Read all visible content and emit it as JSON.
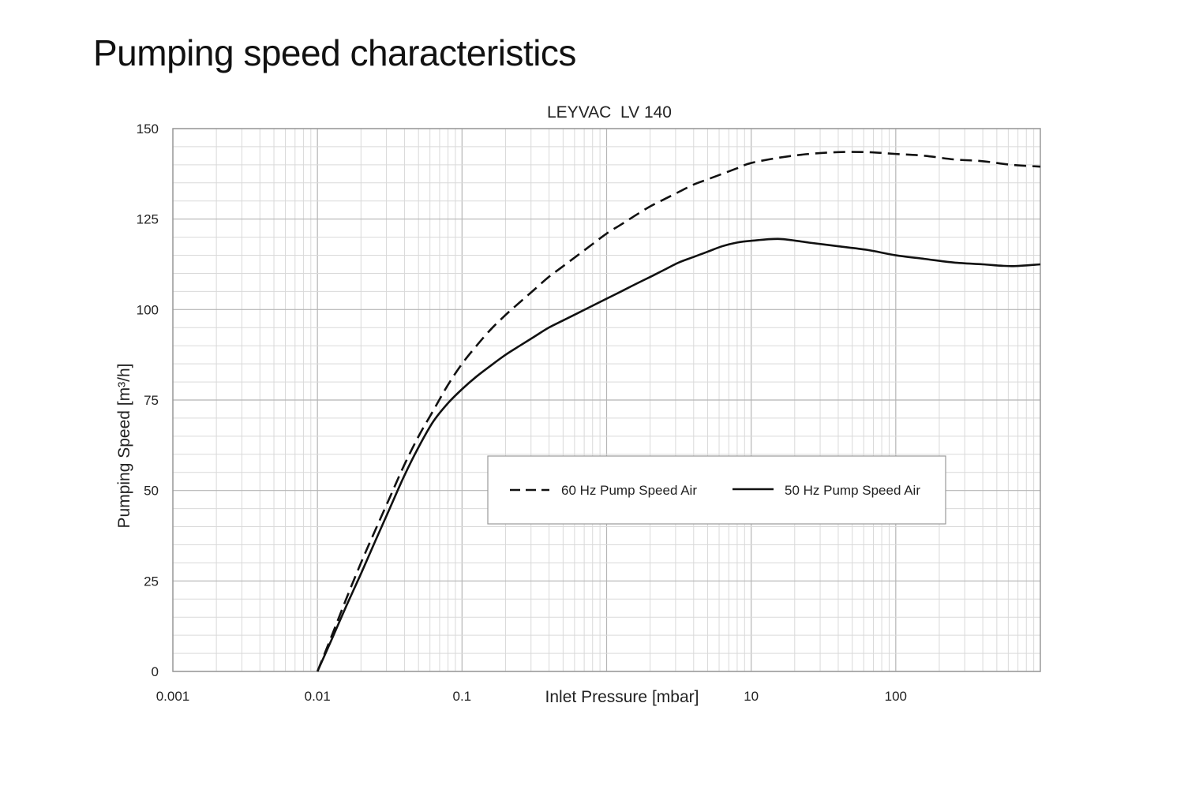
{
  "page": {
    "title": "Pumping speed characteristics"
  },
  "chart_data": {
    "type": "line",
    "title": "LEYVAC  LV 140",
    "xlabel": "Inlet Pressure [mbar]",
    "ylabel": "Pumping Speed [m³/h]",
    "x_scale": "log",
    "xlim": [
      0.001,
      1000
    ],
    "ylim": [
      0,
      150
    ],
    "x_ticks": [
      0.001,
      0.01,
      0.1,
      10,
      100
    ],
    "x_tick_labels": [
      "0.001",
      "0.01",
      "0.1",
      "10",
      "100"
    ],
    "y_ticks": [
      0,
      25,
      50,
      75,
      100,
      125,
      150
    ],
    "y_tick_labels": [
      "0",
      "25",
      "50",
      "75",
      "100",
      "125",
      "150"
    ],
    "grid": true,
    "legend_position": "center-right",
    "series": [
      {
        "name": "60 Hz Pump Speed Air",
        "line_style": "dashed",
        "color": "#111111",
        "x": [
          0.01,
          0.0126,
          0.0158,
          0.02,
          0.0251,
          0.0316,
          0.0398,
          0.0501,
          0.0631,
          0.0794,
          0.1,
          0.126,
          0.158,
          0.2,
          0.251,
          0.316,
          0.398,
          0.501,
          0.631,
          0.794,
          1,
          1.26,
          1.58,
          2,
          2.51,
          3.16,
          3.98,
          5.01,
          6.31,
          7.94,
          10,
          15.8,
          25.1,
          39.8,
          63.1,
          100,
          158,
          251,
          398,
          631,
          1000
        ],
        "values": [
          0,
          10,
          20,
          30,
          39,
          48,
          57,
          65,
          72,
          79,
          85,
          90,
          94.5,
          98.5,
          102,
          105.5,
          109,
          112,
          115,
          118,
          121,
          123.5,
          126,
          128.5,
          130.5,
          132.5,
          134.5,
          136,
          137.5,
          139,
          140.5,
          142,
          143,
          143.5,
          143.5,
          143,
          142.5,
          141.5,
          141,
          140,
          139.5
        ]
      },
      {
        "name": "50 Hz Pump Speed Air",
        "line_style": "solid",
        "color": "#111111",
        "x": [
          0.01,
          0.0126,
          0.0158,
          0.02,
          0.0251,
          0.0316,
          0.0398,
          0.0501,
          0.0631,
          0.0794,
          0.1,
          0.126,
          0.158,
          0.2,
          0.251,
          0.316,
          0.398,
          0.501,
          0.631,
          0.794,
          1,
          1.26,
          1.58,
          2,
          2.51,
          3.16,
          3.98,
          5.01,
          6.31,
          7.94,
          10,
          15.8,
          25.1,
          39.8,
          63.1,
          100,
          158,
          251,
          398,
          631,
          1000
        ],
        "values": [
          0,
          9,
          18,
          27,
          36,
          45,
          54,
          62,
          69,
          74,
          78,
          81.5,
          84.5,
          87.5,
          90,
          92.5,
          95,
          97,
          99,
          101,
          103,
          105,
          107,
          109,
          111,
          113,
          114.5,
          116,
          117.5,
          118.5,
          119,
          119.5,
          118.5,
          117.5,
          116.5,
          115,
          114,
          113,
          112.5,
          112,
          112.5
        ]
      }
    ]
  }
}
